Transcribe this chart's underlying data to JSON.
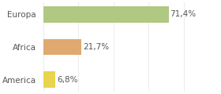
{
  "categories": [
    "America",
    "Africa",
    "Europa"
  ],
  "values": [
    6.8,
    21.7,
    71.4
  ],
  "labels": [
    "6,8%",
    "21,7%",
    "71,4%"
  ],
  "bar_colors": [
    "#e8d44d",
    "#e0a970",
    "#b0c882"
  ],
  "background_color": "#ffffff",
  "xlim": [
    0,
    100
  ],
  "bar_height": 0.5,
  "label_fontsize": 7.5,
  "category_fontsize": 7.5,
  "figsize": [
    2.8,
    1.2
  ],
  "dpi": 100
}
